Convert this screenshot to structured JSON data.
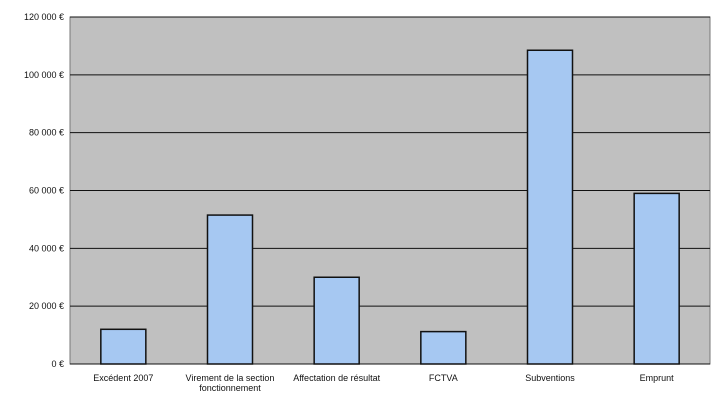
{
  "chart_data": {
    "type": "bar",
    "title": "",
    "xlabel": "",
    "ylabel": "",
    "categories": [
      "Excédent 2007",
      "Virement de la section fonctionnement",
      "Affectation de résultat",
      "FCTVA",
      "Subventions",
      "Emprunt"
    ],
    "category_lines": [
      [
        "Excédent 2007"
      ],
      [
        "Virement de la section",
        "fonctionnement"
      ],
      [
        "Affectation de résultat"
      ],
      [
        "FCTVA"
      ],
      [
        "Subventions"
      ],
      [
        "Emprunt"
      ]
    ],
    "values": [
      12000,
      51500,
      30000,
      11200,
      108500,
      59000
    ],
    "ylim": [
      0,
      120000
    ],
    "y_ticks": [
      0,
      20000,
      40000,
      60000,
      80000,
      100000,
      120000
    ],
    "y_tick_labels": [
      "0 €",
      "20 000 €",
      "40 000 €",
      "60 000 €",
      "80 000 €",
      "100 000 €",
      "120 000 €"
    ],
    "grid": true,
    "legend": "none",
    "colors": {
      "plot_background": "#c0c0c0",
      "bar_fill": "#a6c8f2",
      "bar_stroke": "#111111",
      "grid_line": "#111111",
      "axis_text": "#111111",
      "page_background": "#ffffff"
    }
  }
}
